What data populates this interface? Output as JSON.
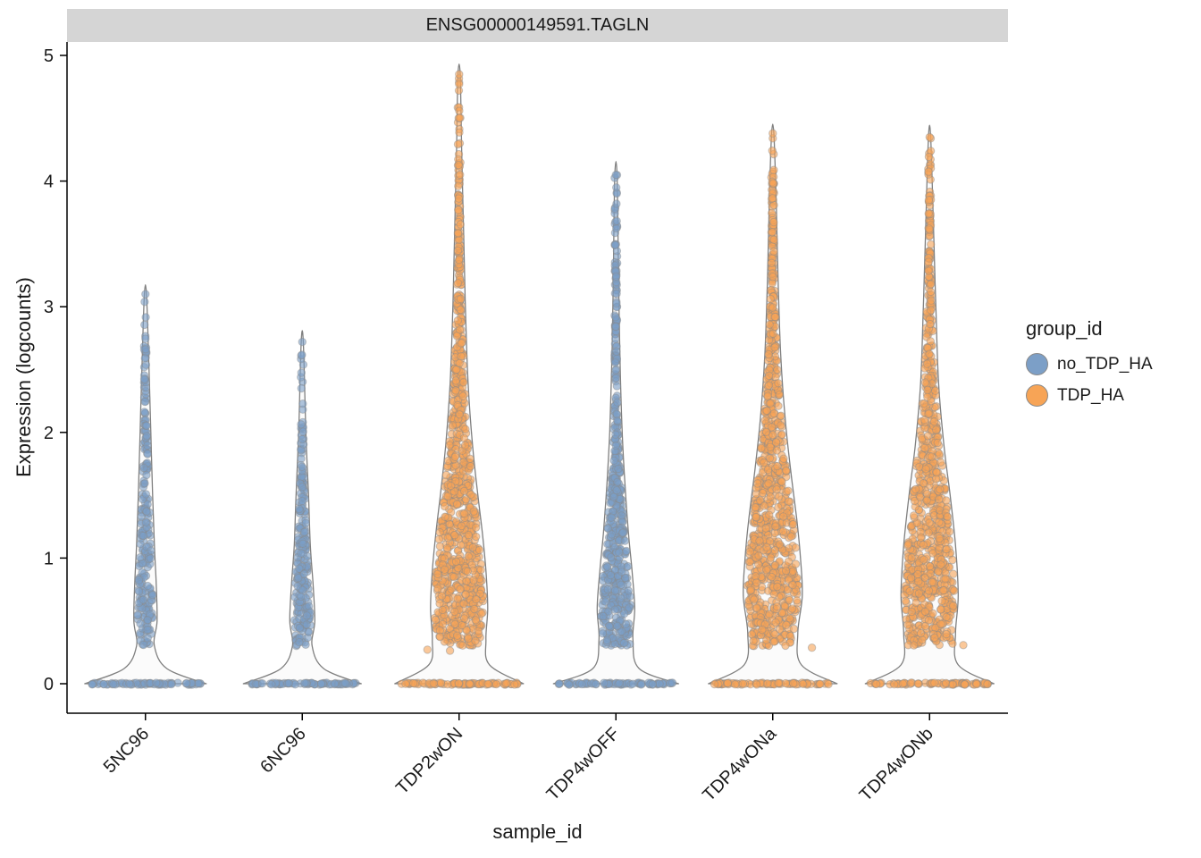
{
  "chart_data": {
    "type": "violin-scatter",
    "title": "ENSG00000149591.TAGLN",
    "xlabel": "sample_id",
    "ylabel": "Expression (logcounts)",
    "ylim": [
      0,
      5
    ],
    "yticks": [
      0,
      1,
      2,
      3,
      4,
      5
    ],
    "categories": [
      "5NC96",
      "6NC96",
      "TDP2wON",
      "TDP4wOFF",
      "TDP4wONa",
      "TDP4wONb"
    ],
    "legend": {
      "title": "group_id",
      "entries": [
        {
          "label": "no_TDP_HA",
          "color": "#7C9FC7"
        },
        {
          "label": "TDP_HA",
          "color": "#F7A456"
        }
      ]
    },
    "style": {
      "strip_bg": "#D5D5D5",
      "violin_fill": "#FBFBFB",
      "violin_outline": "#808080",
      "point_stroke": "#8a8a8a",
      "point_alpha": 0.6,
      "axis_color": "#000000"
    },
    "violins": [
      {
        "sample": "5NC96",
        "group": "no_TDP_HA",
        "max_value": 3.1,
        "n_zero": 70,
        "n_cloud": 230,
        "n_stray": 0,
        "profile": [
          [
            0,
            68
          ],
          [
            0.12,
            24
          ],
          [
            0.3,
            10
          ],
          [
            0.5,
            13
          ],
          [
            0.8,
            12
          ],
          [
            1.1,
            10
          ],
          [
            1.5,
            8
          ],
          [
            2.0,
            6
          ],
          [
            2.5,
            4
          ],
          [
            3.1,
            1.2
          ]
        ]
      },
      {
        "sample": "6NC96",
        "group": "no_TDP_HA",
        "max_value": 2.72,
        "n_zero": 70,
        "n_cloud": 230,
        "n_stray": 0,
        "profile": [
          [
            0,
            66
          ],
          [
            0.12,
            24
          ],
          [
            0.3,
            11
          ],
          [
            0.5,
            14
          ],
          [
            0.8,
            12
          ],
          [
            1.1,
            9
          ],
          [
            1.5,
            7
          ],
          [
            2.0,
            4
          ],
          [
            2.72,
            1.2
          ]
        ]
      },
      {
        "sample": "TDP2wON",
        "group": "TDP_HA",
        "max_value": 4.85,
        "n_zero": 80,
        "n_cloud": 850,
        "n_stray": 3,
        "profile": [
          [
            0,
            72
          ],
          [
            0.15,
            34
          ],
          [
            0.35,
            30
          ],
          [
            0.6,
            32
          ],
          [
            0.9,
            30
          ],
          [
            1.2,
            26
          ],
          [
            1.5,
            21
          ],
          [
            1.9,
            15
          ],
          [
            2.4,
            10
          ],
          [
            3.0,
            7
          ],
          [
            3.6,
            5
          ],
          [
            4.2,
            3
          ],
          [
            4.85,
            1.2
          ]
        ]
      },
      {
        "sample": "TDP4wOFF",
        "group": "no_TDP_HA",
        "max_value": 4.05,
        "n_zero": 75,
        "n_cloud": 520,
        "n_stray": 0,
        "profile": [
          [
            0,
            70
          ],
          [
            0.12,
            26
          ],
          [
            0.35,
            19
          ],
          [
            0.6,
            21
          ],
          [
            0.9,
            18
          ],
          [
            1.2,
            14
          ],
          [
            1.6,
            10
          ],
          [
            2.0,
            7
          ],
          [
            2.6,
            4.5
          ],
          [
            3.2,
            3
          ],
          [
            4.05,
            1.2
          ]
        ]
      },
      {
        "sample": "TDP4wONa",
        "group": "TDP_HA",
        "max_value": 4.38,
        "n_zero": 80,
        "n_cloud": 850,
        "n_stray": 2,
        "profile": [
          [
            0,
            72
          ],
          [
            0.15,
            32
          ],
          [
            0.4,
            28
          ],
          [
            0.7,
            33
          ],
          [
            1.0,
            31
          ],
          [
            1.3,
            27
          ],
          [
            1.7,
            20
          ],
          [
            2.1,
            14
          ],
          [
            2.6,
            9
          ],
          [
            3.2,
            6
          ],
          [
            3.8,
            4
          ],
          [
            4.38,
            1.2
          ]
        ]
      },
      {
        "sample": "TDP4wONb",
        "group": "TDP_HA",
        "max_value": 4.35,
        "n_zero": 80,
        "n_cloud": 800,
        "n_stray": 2,
        "profile": [
          [
            0,
            72
          ],
          [
            0.15,
            32
          ],
          [
            0.4,
            29
          ],
          [
            0.7,
            32
          ],
          [
            1.1,
            29
          ],
          [
            1.5,
            23
          ],
          [
            1.9,
            16
          ],
          [
            2.4,
            10
          ],
          [
            3.0,
            7
          ],
          [
            3.6,
            4.5
          ],
          [
            4.35,
            1.2
          ]
        ]
      }
    ]
  }
}
